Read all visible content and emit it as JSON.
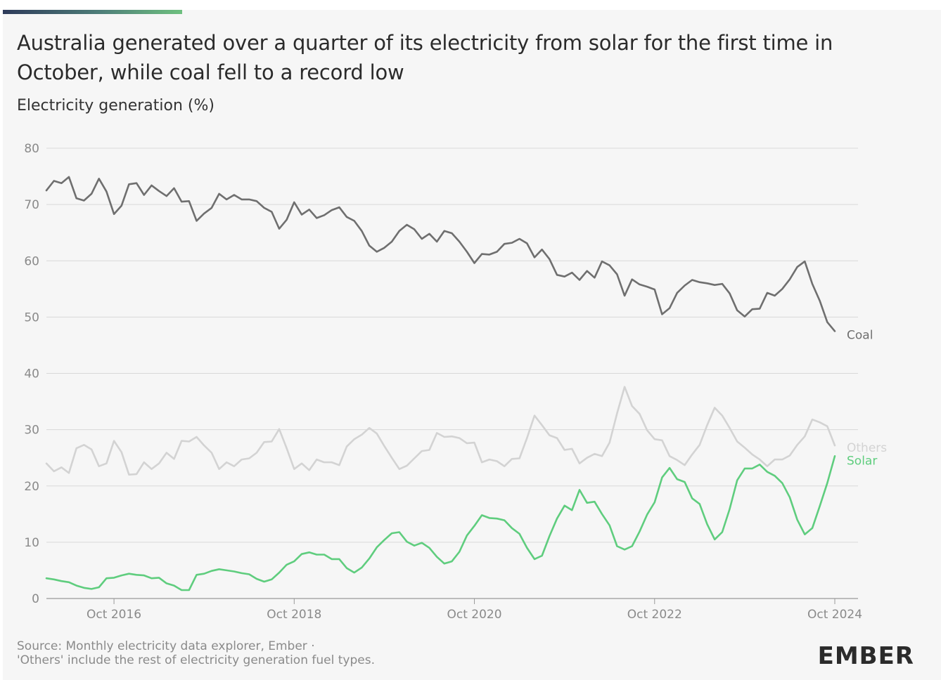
{
  "title": "Australia generated over a quarter of its electricity from solar for the first time in October, while coal fell to a record low",
  "ylabel": "Electricity generation (%)",
  "footer": {
    "line1": "Source: Monthly electricity data explorer, Ember ·",
    "line2": "'Others' include the rest of electricity generation fuel types."
  },
  "brand": "EMBER",
  "colors": {
    "coal": "#6f6f6f",
    "others": "#d3d3d3",
    "solar": "#5fcd7e",
    "grid": "#d9d9d9",
    "axis": "#9a9a9a"
  },
  "chart_data": {
    "type": "line",
    "title": "Australia generated over a quarter of its electricity from solar for the first time in October, while coal fell to a record low",
    "ylabel": "Electricity generation (%)",
    "ylim": [
      0,
      80
    ],
    "yticks": [
      0,
      10,
      20,
      30,
      40,
      50,
      60,
      70,
      80
    ],
    "xstart": "2016-01",
    "xend": "2024-10",
    "xticks": [
      "Oct 2016",
      "Oct 2018",
      "Oct 2020",
      "Oct 2022",
      "Oct 2024"
    ],
    "xtick_months": [
      "2016-10",
      "2018-10",
      "2020-10",
      "2022-10",
      "2024-10"
    ],
    "grid": true,
    "legend": "end-of-line labels",
    "series": [
      {
        "name": "Coal",
        "key": "coal",
        "values": [
          72.5,
          74.2,
          73.8,
          74.9,
          71.1,
          70.7,
          71.9,
          74.6,
          72.3,
          68.3,
          69.8,
          73.6,
          73.8,
          71.7,
          73.4,
          72.4,
          71.5,
          72.9,
          70.5,
          70.6,
          67.1,
          68.4,
          69.4,
          71.9,
          70.9,
          71.7,
          70.9,
          70.9,
          70.6,
          69.4,
          68.7,
          65.7,
          67.3,
          70.4,
          68.2,
          69.1,
          67.6,
          68.1,
          69.0,
          69.5,
          67.8,
          67.1,
          65.3,
          62.7,
          61.6,
          62.3,
          63.4,
          65.3,
          66.4,
          65.6,
          63.9,
          64.8,
          63.4,
          65.3,
          64.9,
          63.4,
          61.6,
          59.6,
          61.2,
          61.1,
          61.6,
          63.0,
          63.2,
          63.9,
          63.1,
          60.6,
          62.0,
          60.3,
          57.5,
          57.2,
          57.9,
          56.6,
          58.2,
          57.0,
          59.9,
          59.2,
          57.6,
          53.8,
          56.7,
          55.8,
          55.4,
          54.9,
          50.5,
          51.6,
          54.3,
          55.6,
          56.6,
          56.2,
          56.0,
          55.7,
          55.9,
          54.2,
          51.2,
          50.1,
          51.4,
          51.5,
          54.3,
          53.8,
          55.0,
          56.7,
          58.9,
          59.9,
          55.9,
          52.9,
          49.1,
          47.5
        ]
      },
      {
        "name": "Others",
        "key": "others",
        "values": [
          24.0,
          22.6,
          23.3,
          22.3,
          26.7,
          27.3,
          26.5,
          23.5,
          24.0,
          28.0,
          26.0,
          22.0,
          22.1,
          24.2,
          23.0,
          24.0,
          25.9,
          24.8,
          28.0,
          27.9,
          28.7,
          27.2,
          25.9,
          23.0,
          24.2,
          23.5,
          24.7,
          24.9,
          25.9,
          27.8,
          27.9,
          30.1,
          26.7,
          23.0,
          24.0,
          22.8,
          24.7,
          24.2,
          24.2,
          23.7,
          27.0,
          28.3,
          29.1,
          30.3,
          29.3,
          27.1,
          25.0,
          23.0,
          23.6,
          24.9,
          26.2,
          26.4,
          29.4,
          28.7,
          28.8,
          28.5,
          27.6,
          27.7,
          24.2,
          24.7,
          24.4,
          23.5,
          24.8,
          24.9,
          28.5,
          32.5,
          30.8,
          29.0,
          28.5,
          26.4,
          26.6,
          24.0,
          25.0,
          25.7,
          25.3,
          27.7,
          32.9,
          37.6,
          34.2,
          32.8,
          29.9,
          28.3,
          28.1,
          25.3,
          24.6,
          23.7,
          25.6,
          27.3,
          30.8,
          33.9,
          32.5,
          30.3,
          27.9,
          26.8,
          25.6,
          24.7,
          23.5,
          24.7,
          24.7,
          25.4,
          27.3,
          28.8,
          31.8,
          31.3,
          30.6,
          27.2
        ]
      },
      {
        "name": "Solar",
        "key": "solar",
        "values": [
          3.6,
          3.4,
          3.1,
          2.9,
          2.3,
          1.9,
          1.7,
          2.0,
          3.6,
          3.7,
          4.1,
          4.4,
          4.2,
          4.1,
          3.6,
          3.7,
          2.7,
          2.3,
          1.5,
          1.5,
          4.2,
          4.4,
          4.9,
          5.2,
          5.0,
          4.8,
          4.5,
          4.3,
          3.5,
          3.0,
          3.4,
          4.6,
          6.0,
          6.6,
          7.9,
          8.2,
          7.8,
          7.8,
          7.0,
          7.0,
          5.4,
          4.6,
          5.5,
          7.1,
          9.1,
          10.4,
          11.6,
          11.8,
          10.1,
          9.4,
          9.9,
          9.0,
          7.4,
          6.2,
          6.6,
          8.3,
          11.2,
          12.9,
          14.8,
          14.3,
          14.2,
          13.9,
          12.5,
          11.5,
          9.0,
          7.0,
          7.6,
          11.1,
          14.2,
          16.5,
          15.7,
          19.3,
          17.0,
          17.2,
          15.0,
          13.0,
          9.3,
          8.7,
          9.3,
          11.9,
          14.9,
          17.1,
          21.5,
          23.2,
          21.2,
          20.7,
          17.8,
          16.8,
          13.2,
          10.5,
          11.8,
          15.9,
          21.0,
          23.1,
          23.1,
          23.8,
          22.5,
          21.8,
          20.5,
          18.0,
          14.0,
          11.4,
          12.5,
          16.4,
          20.5,
          25.3
        ]
      }
    ]
  }
}
